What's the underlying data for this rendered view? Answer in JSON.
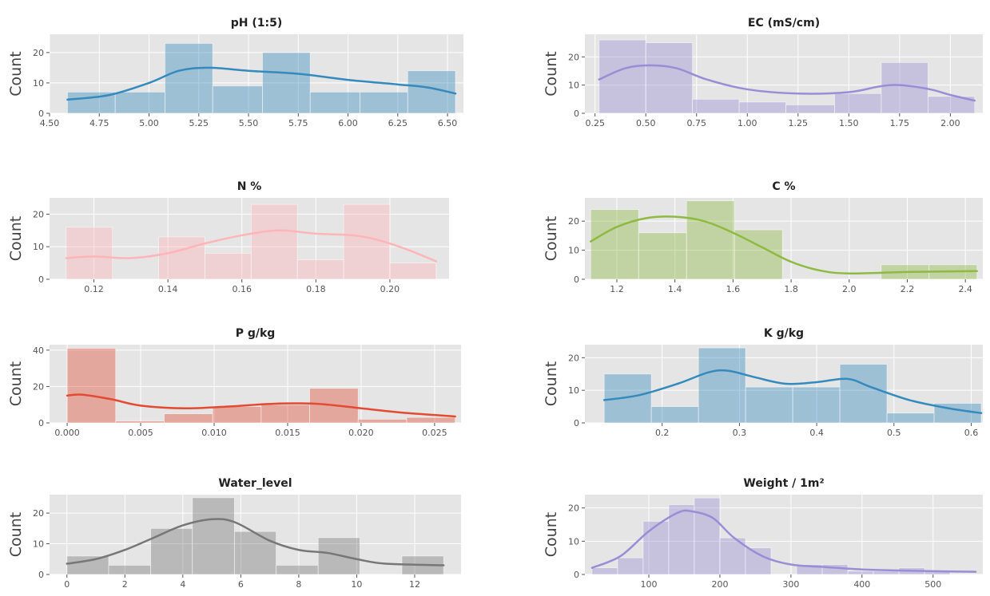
{
  "chart_data": [
    {
      "type": "bar",
      "title": "pH (1:5)",
      "ylabel": "Count",
      "color": "#348ABD",
      "bin_edges": [
        4.59,
        4.83,
        5.08,
        5.32,
        5.57,
        5.81,
        6.06,
        6.3,
        6.54
      ],
      "counts": [
        7,
        7,
        23,
        9,
        20,
        7,
        7,
        14
      ],
      "kde": [
        [
          4.59,
          4.5
        ],
        [
          4.8,
          6
        ],
        [
          5.0,
          10
        ],
        [
          5.15,
          14
        ],
        [
          5.3,
          15
        ],
        [
          5.5,
          14
        ],
        [
          5.75,
          13
        ],
        [
          6.0,
          11
        ],
        [
          6.25,
          9.5
        ],
        [
          6.4,
          8.5
        ],
        [
          6.54,
          6.5
        ]
      ],
      "xlim": [
        4.5,
        6.58
      ],
      "ylim": [
        0,
        26
      ],
      "xticks": [
        4.5,
        4.75,
        5.0,
        5.25,
        5.5,
        5.75,
        6.0,
        6.25,
        6.5
      ],
      "xtick_labels": [
        "4.50",
        "4.75",
        "5.00",
        "5.25",
        "5.50",
        "5.75",
        "6.00",
        "6.25",
        "6.50"
      ],
      "yticks": [
        0,
        10,
        20
      ],
      "ytick_labels": [
        "0",
        "10",
        "20"
      ]
    },
    {
      "type": "bar",
      "title": "EC (mS/cm)",
      "ylabel": "Count",
      "color": "#988ED5",
      "bin_edges": [
        0.27,
        0.5,
        0.73,
        0.96,
        1.19,
        1.43,
        1.66,
        1.89,
        2.12
      ],
      "counts": [
        26,
        25,
        5,
        4,
        3,
        7,
        18,
        6
      ],
      "kde": [
        [
          0.27,
          12
        ],
        [
          0.4,
          16
        ],
        [
          0.52,
          17
        ],
        [
          0.65,
          16
        ],
        [
          0.8,
          12
        ],
        [
          1.0,
          8.5
        ],
        [
          1.25,
          7
        ],
        [
          1.5,
          7.5
        ],
        [
          1.65,
          9.5
        ],
        [
          1.75,
          10
        ],
        [
          1.9,
          8.5
        ],
        [
          2.0,
          6.5
        ],
        [
          2.12,
          4.5
        ]
      ],
      "xlim": [
        0.2,
        2.16
      ],
      "ylim": [
        0,
        28
      ],
      "xticks": [
        0.25,
        0.5,
        0.75,
        1.0,
        1.25,
        1.5,
        1.75,
        2.0
      ],
      "xtick_labels": [
        "0.25",
        "0.50",
        "0.75",
        "1.00",
        "1.25",
        "1.50",
        "1.75",
        "2.00"
      ],
      "yticks": [
        0,
        10,
        20
      ],
      "ytick_labels": [
        "0",
        "10",
        "20"
      ]
    },
    {
      "type": "bar",
      "title": "N %",
      "ylabel": "Count",
      "color": "#FFB5B8",
      "bin_edges": [
        0.1125,
        0.125,
        0.1375,
        0.15,
        0.1625,
        0.175,
        0.1875,
        0.2,
        0.2125
      ],
      "counts": [
        16,
        0,
        13,
        8,
        23,
        6,
        23,
        5
      ],
      "kde": [
        [
          0.1125,
          6.5
        ],
        [
          0.12,
          7
        ],
        [
          0.13,
          6.5
        ],
        [
          0.14,
          8
        ],
        [
          0.15,
          11
        ],
        [
          0.16,
          13.5
        ],
        [
          0.17,
          15
        ],
        [
          0.18,
          14
        ],
        [
          0.19,
          13.5
        ],
        [
          0.197,
          12
        ],
        [
          0.205,
          9
        ],
        [
          0.2125,
          5.5
        ]
      ],
      "xlim": [
        0.108,
        0.216
      ],
      "ylim": [
        0,
        25
      ],
      "xticks": [
        0.12,
        0.14,
        0.16,
        0.18,
        0.2
      ],
      "xtick_labels": [
        "0.12",
        "0.14",
        "0.16",
        "0.18",
        "0.20"
      ],
      "yticks": [
        0,
        10,
        20
      ],
      "ytick_labels": [
        "0",
        "10",
        "20"
      ]
    },
    {
      "type": "bar",
      "title": "C %",
      "ylabel": "Count",
      "color": "#8EBA42",
      "bin_edges": [
        1.11,
        1.275,
        1.44,
        1.605,
        1.77,
        1.94,
        2.11,
        2.275,
        2.44
      ],
      "counts": [
        24,
        16,
        27,
        17,
        0,
        0,
        5,
        5
      ],
      "kde": [
        [
          1.11,
          13
        ],
        [
          1.2,
          18
        ],
        [
          1.3,
          21
        ],
        [
          1.4,
          21.5
        ],
        [
          1.5,
          20
        ],
        [
          1.6,
          16
        ],
        [
          1.7,
          11
        ],
        [
          1.8,
          6
        ],
        [
          1.9,
          3
        ],
        [
          2.0,
          2
        ],
        [
          2.2,
          2.5
        ],
        [
          2.44,
          2.8
        ]
      ],
      "xlim": [
        1.09,
        2.46
      ],
      "ylim": [
        0,
        28
      ],
      "xticks": [
        1.2,
        1.4,
        1.6,
        1.8,
        2.0,
        2.2,
        2.4
      ],
      "xtick_labels": [
        "1.2",
        "1.4",
        "1.6",
        "1.8",
        "2.0",
        "2.2",
        "2.4"
      ],
      "yticks": [
        0,
        10,
        20
      ],
      "ytick_labels": [
        "0",
        "10",
        "20"
      ]
    },
    {
      "type": "bar",
      "title": "P g/kg",
      "ylabel": "Count",
      "color": "#E24A33",
      "bin_edges": [
        0.0,
        0.0033,
        0.0066,
        0.0099,
        0.0132,
        0.0165,
        0.0198,
        0.0231,
        0.0264
      ],
      "counts": [
        41,
        1,
        5,
        9,
        10,
        19,
        2,
        3
      ],
      "kde": [
        [
          0.0,
          15
        ],
        [
          0.001,
          15.5
        ],
        [
          0.003,
          13
        ],
        [
          0.005,
          9.5
        ],
        [
          0.008,
          8
        ],
        [
          0.011,
          9
        ],
        [
          0.014,
          10.5
        ],
        [
          0.017,
          10.5
        ],
        [
          0.02,
          8
        ],
        [
          0.023,
          5.5
        ],
        [
          0.0264,
          3.5
        ]
      ],
      "xlim": [
        -0.0012,
        0.0268
      ],
      "ylim": [
        0,
        43
      ],
      "xticks": [
        0.0,
        0.005,
        0.01,
        0.015,
        0.02,
        0.025
      ],
      "xtick_labels": [
        "0.000",
        "0.005",
        "0.010",
        "0.015",
        "0.020",
        "0.025"
      ],
      "yticks": [
        0,
        20,
        40
      ],
      "ytick_labels": [
        "0",
        "20",
        "40"
      ]
    },
    {
      "type": "bar",
      "title": "K g/kg",
      "ylabel": "Count",
      "color": "#348ABD",
      "bin_edges": [
        0.125,
        0.186,
        0.247,
        0.308,
        0.369,
        0.43,
        0.491,
        0.552,
        0.613
      ],
      "counts": [
        15,
        5,
        23,
        11,
        11,
        18,
        3,
        6
      ],
      "kde": [
        [
          0.125,
          7
        ],
        [
          0.17,
          8.5
        ],
        [
          0.22,
          12
        ],
        [
          0.26,
          15.5
        ],
        [
          0.285,
          16
        ],
        [
          0.32,
          14
        ],
        [
          0.36,
          12
        ],
        [
          0.4,
          12.5
        ],
        [
          0.44,
          13.5
        ],
        [
          0.47,
          11
        ],
        [
          0.52,
          7
        ],
        [
          0.57,
          4.5
        ],
        [
          0.613,
          3
        ]
      ],
      "xlim": [
        0.1,
        0.615
      ],
      "ylim": [
        0,
        24
      ],
      "xticks": [
        0.2,
        0.3,
        0.4,
        0.5,
        0.6
      ],
      "xtick_labels": [
        "0.2",
        "0.3",
        "0.4",
        "0.5",
        "0.6"
      ],
      "yticks": [
        0,
        10,
        20
      ],
      "ytick_labels": [
        "0",
        "10",
        "20"
      ]
    },
    {
      "type": "bar",
      "title": "Water_level",
      "ylabel": "Count",
      "color": "#777777",
      "bin_edges": [
        0,
        1.44,
        2.89,
        4.33,
        5.78,
        7.22,
        8.67,
        10.11,
        11.56,
        13.0
      ],
      "counts": [
        6,
        3,
        15,
        25,
        14,
        3,
        12,
        0,
        6
      ],
      "kde": [
        [
          0,
          3.5
        ],
        [
          1,
          5
        ],
        [
          2,
          8
        ],
        [
          3,
          12
        ],
        [
          4,
          16
        ],
        [
          5,
          18
        ],
        [
          5.8,
          17
        ],
        [
          7,
          11
        ],
        [
          8,
          8
        ],
        [
          9,
          7
        ],
        [
          10,
          5
        ],
        [
          11,
          3.5
        ],
        [
          13,
          3
        ]
      ],
      "xlim": [
        -0.6,
        13.6
      ],
      "ylim": [
        0,
        26
      ],
      "xticks": [
        0,
        2,
        4,
        6,
        8,
        10,
        12
      ],
      "xtick_labels": [
        "0",
        "2",
        "4",
        "6",
        "8",
        "10",
        "12"
      ],
      "yticks": [
        0,
        10,
        20
      ],
      "ytick_labels": [
        "0",
        "10",
        "20"
      ]
    },
    {
      "type": "bar",
      "title": "Weight / 1m²",
      "ylabel": "Count",
      "color": "#988ED5",
      "bin_edges": [
        20,
        56,
        92,
        128,
        164,
        200,
        236,
        272,
        308,
        344,
        380,
        416,
        452,
        488,
        524,
        560
      ],
      "counts": [
        2,
        5,
        16,
        21,
        23,
        11,
        8,
        0,
        3,
        3,
        1,
        1,
        2,
        1,
        0
      ],
      "kde": [
        [
          20,
          2
        ],
        [
          60,
          5.5
        ],
        [
          100,
          13
        ],
        [
          140,
          18.5
        ],
        [
          160,
          19
        ],
        [
          190,
          17
        ],
        [
          220,
          11
        ],
        [
          260,
          5.5
        ],
        [
          300,
          3
        ],
        [
          350,
          2.2
        ],
        [
          400,
          1.5
        ],
        [
          450,
          1.2
        ],
        [
          500,
          1
        ],
        [
          560,
          0.8
        ]
      ],
      "xlim": [
        10,
        570
      ],
      "ylim": [
        0,
        24
      ],
      "xticks": [
        100,
        200,
        300,
        400,
        500
      ],
      "xtick_labels": [
        "100",
        "200",
        "300",
        "400",
        "500"
      ],
      "yticks": [
        0,
        10,
        20
      ],
      "ytick_labels": [
        "0",
        "10",
        "20"
      ]
    }
  ]
}
